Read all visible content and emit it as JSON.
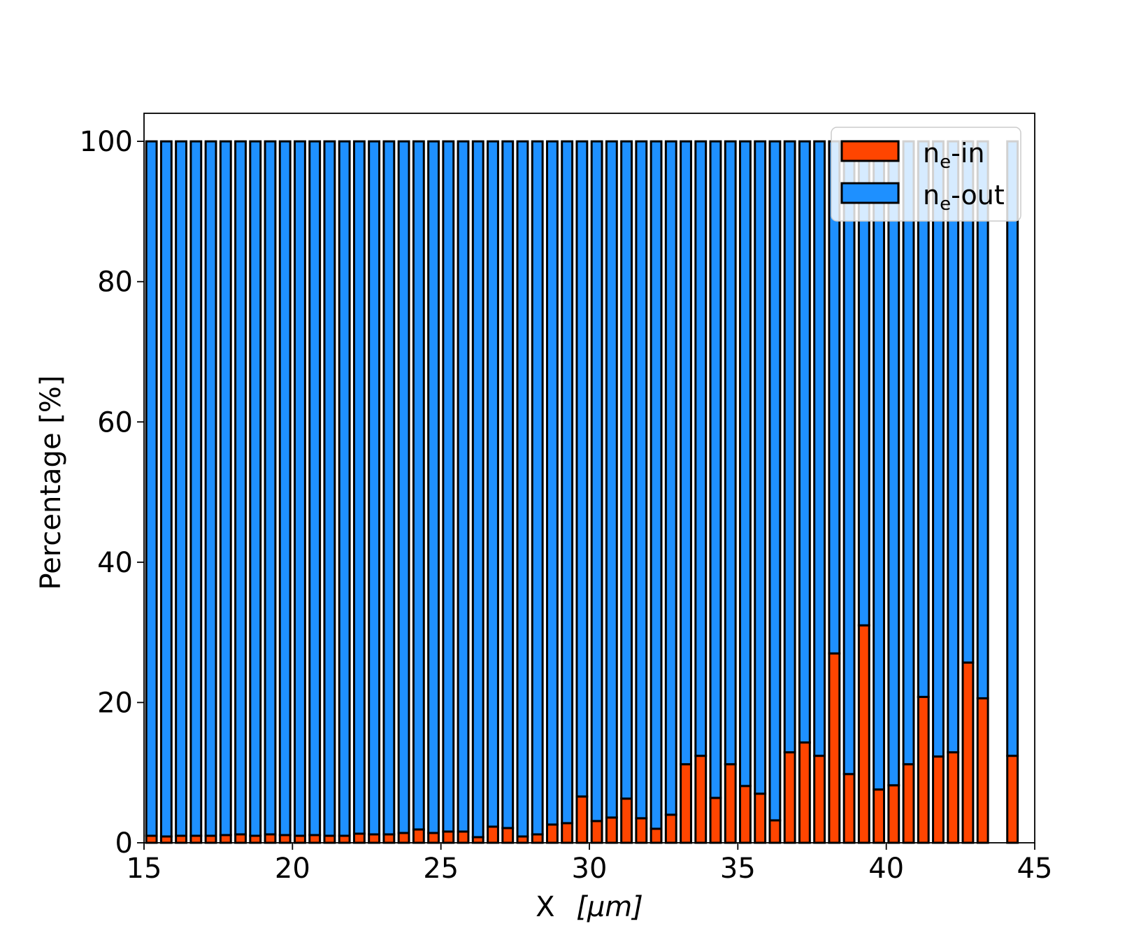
{
  "colors": {
    "in": "#ff4500",
    "out": "#1e90ff",
    "edge": "#000000"
  },
  "chart_data": {
    "type": "bar",
    "stacked": true,
    "xlabel_main": "X",
    "xlabel_unit": "[μm]",
    "ylabel": "Percentage [%]",
    "xlim": [
      15,
      45
    ],
    "ylim": [
      0,
      104
    ],
    "xticks": [
      15,
      20,
      25,
      30,
      35,
      40,
      45
    ],
    "yticks": [
      0,
      20,
      40,
      60,
      80,
      100
    ],
    "legend_position": "top-right",
    "bar_width": 0.35,
    "x": [
      15.25,
      15.75,
      16.25,
      16.75,
      17.25,
      17.75,
      18.25,
      18.75,
      19.25,
      19.75,
      20.25,
      20.75,
      21.25,
      21.75,
      22.25,
      22.75,
      23.25,
      23.75,
      24.25,
      24.75,
      25.25,
      25.75,
      26.25,
      26.75,
      27.25,
      27.75,
      28.25,
      28.75,
      29.25,
      29.75,
      30.25,
      30.75,
      31.25,
      31.75,
      32.25,
      32.75,
      33.25,
      33.75,
      34.25,
      34.75,
      35.25,
      35.75,
      36.25,
      36.75,
      37.25,
      37.75,
      38.25,
      38.75,
      39.25,
      39.75,
      40.25,
      40.75,
      41.25,
      41.75,
      42.25,
      42.75,
      43.25,
      44.25
    ],
    "series": [
      {
        "name": "in",
        "values": [
          1.0,
          0.9,
          1.0,
          1.0,
          1.0,
          1.1,
          1.2,
          1.0,
          1.2,
          1.1,
          1.0,
          1.1,
          1.0,
          1.0,
          1.3,
          1.2,
          1.2,
          1.4,
          1.9,
          1.4,
          1.6,
          1.6,
          0.8,
          2.3,
          2.1,
          0.9,
          1.2,
          2.6,
          2.8,
          6.6,
          3.1,
          3.6,
          6.3,
          3.5,
          2.0,
          4.0,
          11.2,
          12.4,
          6.4,
          11.2,
          8.1,
          7.0,
          3.2,
          12.9,
          14.3,
          12.4,
          27.0,
          9.8,
          31.0,
          7.6,
          8.2,
          11.2,
          20.8,
          12.3,
          12.9,
          25.7,
          20.6,
          12.4
        ]
      },
      {
        "name": "out",
        "values": [
          99.0,
          99.1,
          99.0,
          99.0,
          99.0,
          98.9,
          98.8,
          99.0,
          98.8,
          98.9,
          99.0,
          98.9,
          99.0,
          99.0,
          98.7,
          98.8,
          98.8,
          98.6,
          98.1,
          98.6,
          98.4,
          98.4,
          99.2,
          97.7,
          97.9,
          99.1,
          98.8,
          97.4,
          97.2,
          93.4,
          96.9,
          96.4,
          93.7,
          96.5,
          98.0,
          96.0,
          88.8,
          87.6,
          93.6,
          88.8,
          91.9,
          93.0,
          96.8,
          87.1,
          85.7,
          87.6,
          73.0,
          90.2,
          69.0,
          92.4,
          91.8,
          88.8,
          79.2,
          87.7,
          87.1,
          74.3,
          79.4,
          87.6
        ]
      }
    ]
  }
}
